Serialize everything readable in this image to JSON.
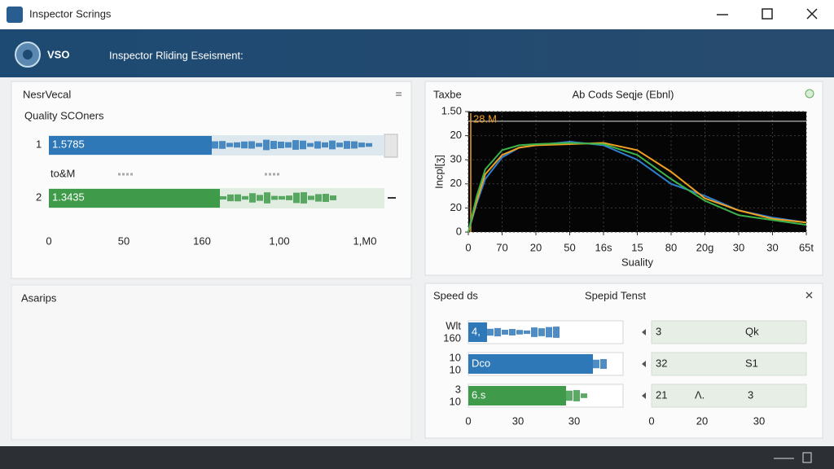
{
  "window": {
    "title": "Inspector Scrings"
  },
  "header": {
    "logo": "VSO",
    "title": "Inspector Rliding Eseisment:"
  },
  "quality_panel": {
    "tab": "NesrVecal",
    "title": "Quality SCOners",
    "rows": [
      {
        "index": "1",
        "label": "1.5785"
      },
      {
        "index": "2",
        "label": "1.3435"
      }
    ],
    "sublabel": "to&M",
    "axis_labels": [
      "0",
      "50",
      "160",
      "1,00",
      "1,M0"
    ]
  },
  "samples_panel": {
    "title": "Asarips"
  },
  "plot_panel": {
    "tab": "Taxbe",
    "chart_data": {
      "type": "line",
      "title": "Ab Cods Seqje (Ebnl)",
      "xlabel": "Suality",
      "ylabel": "Incpl[ʒ]",
      "annotation": "28.M",
      "reference_line": 4.6,
      "xlim": [
        0,
        10
      ],
      "xticks": [
        0,
        {
          "value": 1,
          "label": "70"
        },
        {
          "value": 2,
          "label": "20"
        },
        {
          "value": 3,
          "label": "50"
        },
        {
          "value": 4,
          "label": "16s"
        },
        {
          "value": 5,
          "label": "15"
        },
        {
          "value": 6,
          "label": "80"
        },
        {
          "value": 7,
          "label": "20g"
        },
        {
          "value": 8,
          "label": "30"
        },
        {
          "value": 9,
          "label": "30"
        },
        {
          "value": 10,
          "label": "65t"
        }
      ],
      "ylim": [
        0,
        5
      ],
      "yticks": [
        0,
        {
          "value": 1,
          "label": "20"
        },
        {
          "value": 2,
          "label": "20"
        },
        {
          "value": 3,
          "label": "30"
        },
        {
          "value": 4,
          "label": "20"
        },
        {
          "value": 5,
          "label": "1.50"
        }
      ],
      "grid": true,
      "x": [
        0,
        0.25,
        0.5,
        1,
        1.5,
        2,
        3,
        4,
        5,
        6,
        7,
        8,
        9,
        10
      ],
      "series": [
        {
          "color": "#2f7fd0",
          "values": [
            0,
            1.2,
            2.2,
            3.1,
            3.5,
            3.6,
            3.75,
            3.6,
            3.0,
            2.0,
            1.5,
            0.9,
            0.6,
            0.4
          ]
        },
        {
          "color": "#f0a020",
          "values": [
            0,
            1.3,
            2.4,
            3.2,
            3.5,
            3.6,
            3.65,
            3.7,
            3.4,
            2.5,
            1.4,
            0.9,
            0.55,
            0.4
          ]
        },
        {
          "color": "#3cb44b",
          "values": [
            0,
            1.5,
            2.6,
            3.4,
            3.6,
            3.65,
            3.7,
            3.65,
            3.2,
            2.2,
            1.3,
            0.7,
            0.5,
            0.3
          ]
        }
      ]
    }
  },
  "speed_panel": {
    "tab": "Speed ds",
    "title": "Spepid Tenst",
    "left_rows": [
      {
        "axis": [
          "Wlt",
          "160"
        ],
        "label": "4,"
      },
      {
        "axis": [
          "10",
          "10"
        ],
        "label": "Dco"
      },
      {
        "axis": [
          "3",
          "10"
        ],
        "label": "6.s"
      }
    ],
    "left_ticks": [
      "0",
      "30",
      "30"
    ],
    "right_rows": [
      [
        "3",
        "Qk"
      ],
      [
        "32",
        "S1"
      ],
      [
        "21",
        "Ʌ.",
        "3"
      ]
    ],
    "right_ticks": [
      "0",
      "20",
      "30"
    ]
  }
}
